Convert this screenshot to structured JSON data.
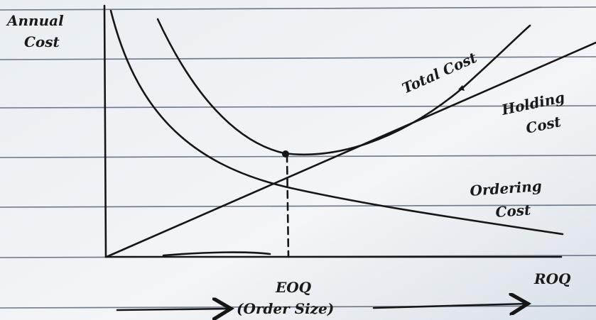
{
  "labels": {
    "y_axis": [
      "Annual",
      "Cost"
    ],
    "total_cost": "Total Cost",
    "holding_cost": [
      "Holding",
      "Cost"
    ],
    "ordering_cost": [
      "Ordering",
      "Cost"
    ],
    "eoq": "EOQ",
    "roq": "ROQ",
    "order_size": "(Order Size)"
  }
}
